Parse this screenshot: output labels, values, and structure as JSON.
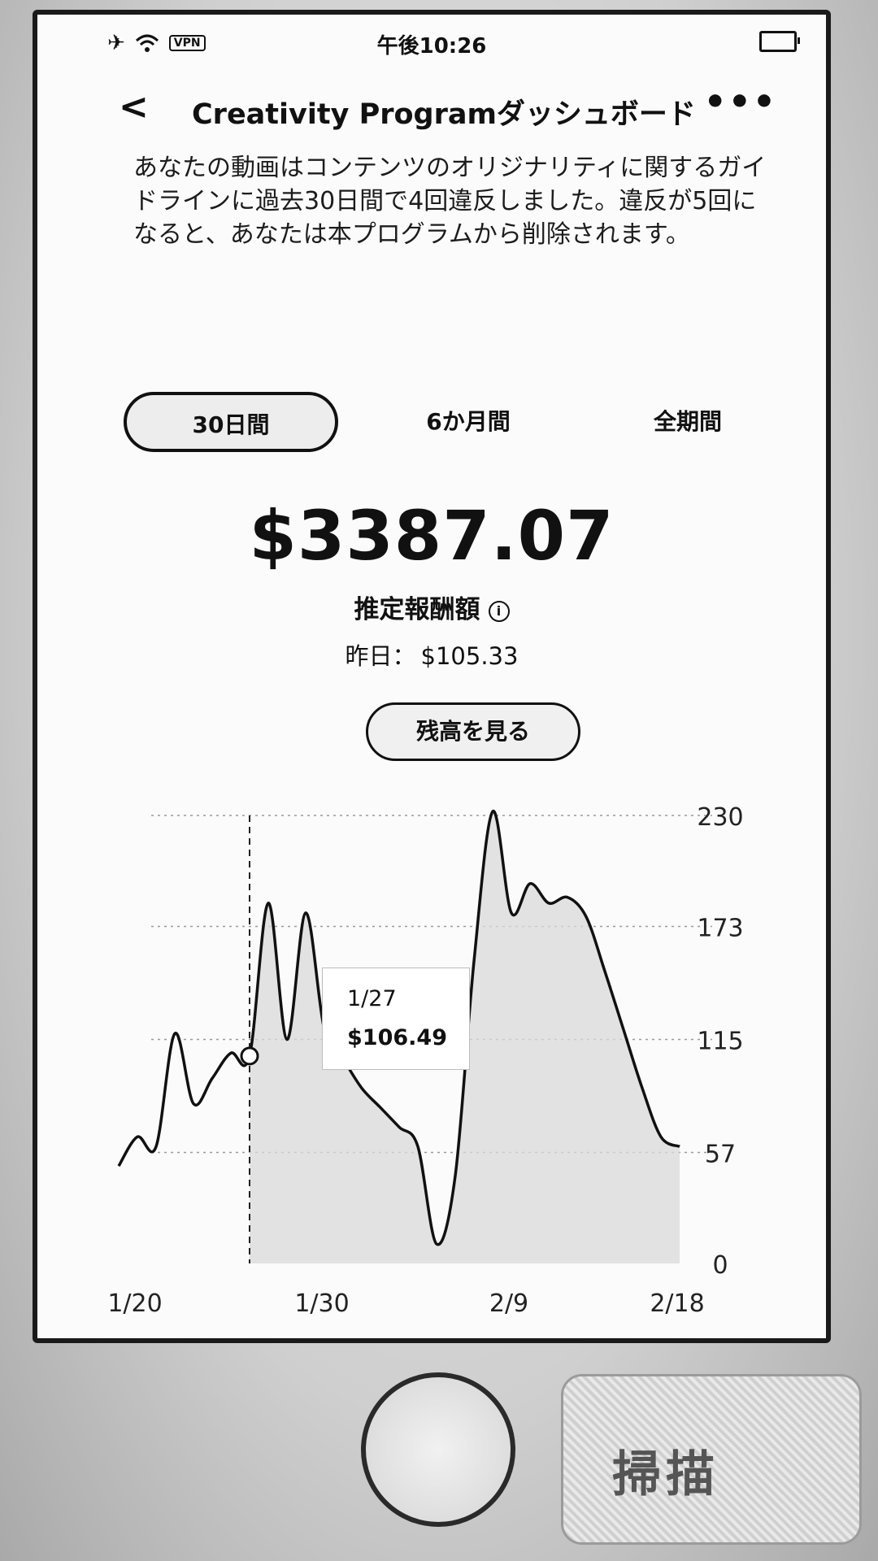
{
  "status_bar": {
    "time": "午後10:26",
    "vpn_label": "VPN",
    "icons": [
      "airplane-icon",
      "wifi-icon",
      "battery-icon"
    ]
  },
  "nav": {
    "title": "Creativity Programダッシュボード",
    "back_icon": "chevron-left-icon",
    "more_icon": "more-horizontal-icon"
  },
  "notice": {
    "text": "あなたの動画はコンテンツのオリジナリティに関するガイドラインに過去30日間で4回違反しました。違反が5回になると、あなたは本プログラムから削除されます。"
  },
  "tabs": [
    {
      "label": "30日間",
      "active": true
    },
    {
      "label": "6か月間",
      "active": false
    },
    {
      "label": "全期間",
      "active": false
    }
  ],
  "earnings": {
    "amount": "$3387.07",
    "label": "推定報酬額",
    "yesterday_label": "昨日：",
    "yesterday_value": "$105.33",
    "balance_button": "残高を見る"
  },
  "chart_data": {
    "type": "area",
    "x_tick_labels": [
      "1/20",
      "1/30",
      "2/9",
      "2/18"
    ],
    "y_tick_labels": [
      "230",
      "173",
      "115",
      "57",
      "0"
    ],
    "ylim": [
      0,
      230
    ],
    "grid": true,
    "series": [
      {
        "x": [
          "1/20",
          "1/21",
          "1/22",
          "1/23",
          "1/24",
          "1/25",
          "1/26",
          "1/27",
          "1/28",
          "1/29",
          "1/30",
          "1/31",
          "2/1",
          "2/2",
          "2/3",
          "2/4",
          "2/5",
          "2/6",
          "2/7",
          "2/8",
          "2/9",
          "2/10",
          "2/11",
          "2/12",
          "2/13",
          "2/14",
          "2/15",
          "2/16",
          "2/17",
          "2/18",
          "2/19"
        ],
        "values": [
          50,
          65,
          60,
          118,
          82,
          95,
          108,
          106.49,
          185,
          115,
          180,
          120,
          105,
          90,
          80,
          70,
          60,
          10,
          45,
          155,
          232,
          180,
          195,
          185,
          188,
          178,
          150,
          120,
          90,
          65,
          60
        ]
      }
    ],
    "highlight": {
      "x": "1/27",
      "label": "1/27",
      "value_label": "$106.49"
    }
  },
  "phone": {
    "qr_text": "掃描"
  }
}
